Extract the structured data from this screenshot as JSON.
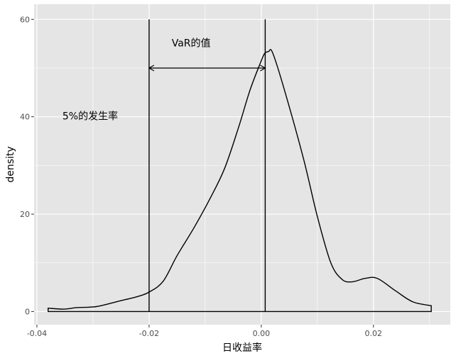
{
  "chart_data": {
    "type": "area",
    "title": "",
    "xlabel": "日收益率",
    "ylabel": "density",
    "xlim": [
      -0.0405,
      0.0337
    ],
    "ylim": [
      -2.7,
      63.1
    ],
    "x_ticks": [
      -0.04,
      -0.02,
      0.0,
      0.02
    ],
    "x_tick_labels": [
      "-0.04",
      "-0.02",
      "0.00",
      "0.02"
    ],
    "y_ticks": [
      0,
      20,
      40,
      60
    ],
    "y_tick_labels": [
      "0",
      "20",
      "40",
      "60"
    ],
    "grid": true,
    "background": "#e5e5e5",
    "grid_color": "#ffffff",
    "line_color": "#000000",
    "series": [
      {
        "x": [
          -0.038,
          -0.0352,
          -0.033,
          -0.0307,
          -0.029,
          -0.0255,
          -0.022,
          -0.02,
          -0.0175,
          -0.015,
          -0.012,
          -0.009,
          -0.0065,
          -0.004,
          -0.002,
          0.0,
          0.0006,
          0.0013,
          0.002,
          0.004,
          0.0075,
          0.01,
          0.0124,
          0.0144,
          0.0162,
          0.0185,
          0.0207,
          0.024,
          0.027,
          0.0303
        ],
        "values": [
          0.7,
          0.5,
          0.8,
          0.9,
          1.1,
          2.1,
          3.1,
          4.0,
          6.2,
          11.5,
          17.2,
          23.5,
          29.5,
          38.0,
          45.5,
          51.5,
          53.0,
          53.4,
          53.2,
          46.0,
          31.5,
          19.5,
          10.0,
          6.6,
          6.1,
          6.8,
          6.8,
          4.2,
          2.0,
          1.2
        ]
      }
    ],
    "vlines": [
      -0.02,
      0.0007
    ],
    "arrow": {
      "x_from": -0.02,
      "x_to": 0.0007,
      "y": 50
    },
    "annotations": [
      {
        "text": "VaR的值",
        "x": -0.0125,
        "y": 55
      },
      {
        "text": "5%的发生率",
        "x": -0.0305,
        "y": 40
      }
    ]
  }
}
